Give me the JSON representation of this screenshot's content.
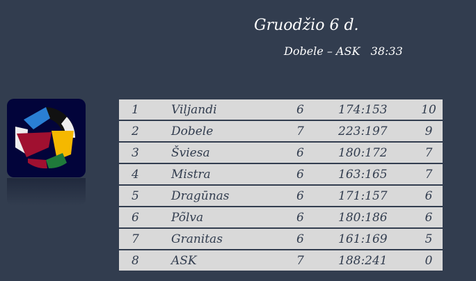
{
  "header": {
    "title": "Gruodžio 6 d.",
    "result": "Dobele – ASK   38:33"
  },
  "logo": {
    "icon": "hands-circle-logo",
    "colors": [
      "#2a7fd4",
      "#000000",
      "#ffffff",
      "#a01030",
      "#f5b800",
      "#1f7a3a"
    ]
  },
  "standings": [
    {
      "rank": "1",
      "team": "Viljandi",
      "games": "6",
      "score": "174:153",
      "points": "10"
    },
    {
      "rank": "2",
      "team": "Dobele",
      "games": "7",
      "score": "223:197",
      "points": "9"
    },
    {
      "rank": "3",
      "team": "Šviesa",
      "games": "6",
      "score": "180:172",
      "points": "7"
    },
    {
      "rank": "4",
      "team": "Mistra",
      "games": "6",
      "score": "163:165",
      "points": "7"
    },
    {
      "rank": "5",
      "team": "Dragūnas",
      "games": "6",
      "score": "171:157",
      "points": "6"
    },
    {
      "rank": "6",
      "team": "Põlva",
      "games": "6",
      "score": "180:186",
      "points": "6"
    },
    {
      "rank": "7",
      "team": "Granitas",
      "games": "6",
      "score": "161:169",
      "points": "5"
    },
    {
      "rank": "8",
      "team": "ASK",
      "games": "7",
      "score": "188:241",
      "points": "0"
    }
  ]
}
